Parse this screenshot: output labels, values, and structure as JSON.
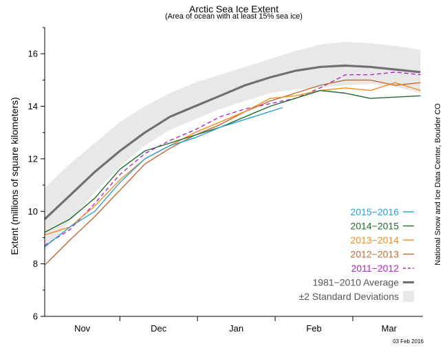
{
  "chart_data": {
    "type": "line",
    "title": "Arctic Sea Ice Extent",
    "subtitle": "(Area of ocean with at least 15% sea ice)",
    "ylabel": "Extent (millions of square kilometers)",
    "credit": "National Snow and Ice Data Center, Boulder CO",
    "date_stamp": "03 Feb 2016",
    "ylim": [
      6,
      17
    ],
    "xlim": [
      0,
      151
    ],
    "y_ticks": [
      6,
      8,
      10,
      12,
      14,
      16
    ],
    "month_boundaries": [
      30,
      61,
      92,
      123
    ],
    "x_labels": [
      {
        "label": "Nov",
        "day": 15
      },
      {
        "label": "Dec",
        "day": 45.5
      },
      {
        "label": "Jan",
        "day": 76.5
      },
      {
        "label": "Feb",
        "day": 107.5
      },
      {
        "label": "Mar",
        "day": 137.5
      }
    ],
    "band": {
      "name": "±2 Standard Deviations",
      "color": "#e8e8e8",
      "x": [
        0,
        10,
        20,
        30,
        40,
        50,
        60,
        70,
        80,
        90,
        100,
        110,
        120,
        130,
        140,
        150
      ],
      "upper": [
        10.9,
        11.8,
        12.6,
        13.4,
        14.0,
        14.5,
        14.9,
        15.2,
        15.5,
        15.8,
        16.1,
        16.35,
        16.45,
        16.4,
        16.3,
        16.15
      ],
      "lower": [
        8.5,
        9.6,
        10.7,
        11.7,
        12.5,
        13.1,
        13.5,
        13.9,
        14.2,
        14.5,
        14.65,
        14.7,
        14.8,
        14.85,
        14.75,
        14.5
      ]
    },
    "series": [
      {
        "name": "1981–2010 Average",
        "color": "#707070",
        "dash": "solid",
        "width": 3.2,
        "x": [
          0,
          10,
          20,
          30,
          40,
          50,
          60,
          65,
          70,
          80,
          90,
          100,
          110,
          120,
          130,
          140,
          150
        ],
        "y": [
          9.7,
          10.6,
          11.5,
          12.3,
          13.0,
          13.6,
          14.0,
          14.2,
          14.4,
          14.8,
          15.1,
          15.35,
          15.5,
          15.55,
          15.5,
          15.4,
          15.3
        ]
      },
      {
        "name": "2011–2012",
        "color": "#b026c6",
        "dash": "6,4",
        "width": 1.4,
        "x": [
          0,
          10,
          20,
          30,
          40,
          50,
          60,
          70,
          80,
          90,
          100,
          110,
          120,
          130,
          140,
          150
        ],
        "y": [
          8.7,
          9.3,
          10.3,
          11.4,
          12.2,
          12.7,
          13.1,
          13.6,
          13.9,
          14.1,
          14.3,
          14.7,
          15.2,
          15.2,
          15.3,
          15.2
        ]
      },
      {
        "name": "2012–2013",
        "color": "#c06a34",
        "dash": "solid",
        "width": 1.4,
        "x": [
          0,
          10,
          20,
          30,
          40,
          50,
          60,
          70,
          80,
          90,
          100,
          110,
          120,
          130,
          140,
          150
        ],
        "y": [
          7.95,
          8.9,
          9.8,
          10.8,
          11.8,
          12.4,
          12.9,
          13.3,
          13.8,
          14.2,
          14.5,
          14.8,
          15.0,
          15.0,
          14.8,
          14.9
        ]
      },
      {
        "name": "2013–2014",
        "color": "#f68b1f",
        "dash": "solid",
        "width": 1.4,
        "x": [
          0,
          10,
          20,
          30,
          40,
          50,
          60,
          70,
          80,
          90,
          100,
          110,
          120,
          130,
          140,
          150
        ],
        "y": [
          9.1,
          9.4,
          10.2,
          11.2,
          12.0,
          12.5,
          13.0,
          13.4,
          13.8,
          14.3,
          14.4,
          14.6,
          14.7,
          14.6,
          14.9,
          14.6
        ]
      },
      {
        "name": "2014–2015",
        "color": "#1e6b2c",
        "dash": "solid",
        "width": 1.4,
        "x": [
          0,
          10,
          20,
          30,
          40,
          50,
          60,
          70,
          80,
          90,
          100,
          110,
          120,
          130,
          140,
          150
        ],
        "y": [
          9.2,
          9.7,
          10.5,
          11.6,
          12.3,
          12.6,
          12.9,
          13.2,
          13.6,
          14.0,
          14.3,
          14.6,
          14.5,
          14.3,
          14.35,
          14.4
        ]
      },
      {
        "name": "2015–2016",
        "color": "#2a9fd8",
        "dash": "solid",
        "width": 1.4,
        "x": [
          0,
          10,
          20,
          30,
          40,
          50,
          60,
          70,
          80,
          90,
          95
        ],
        "y": [
          8.65,
          9.4,
          10.0,
          11.1,
          12.0,
          12.5,
          12.8,
          13.2,
          13.5,
          13.8,
          13.95
        ]
      }
    ],
    "legend": [
      {
        "label": "2015−2016",
        "color": "#2a9fd8",
        "dash": "solid",
        "kind": "line"
      },
      {
        "label": "2014−2015",
        "color": "#1e6b2c",
        "dash": "solid",
        "kind": "line"
      },
      {
        "label": "2013−2014",
        "color": "#f68b1f",
        "dash": "solid",
        "kind": "line"
      },
      {
        "label": "2012−2013",
        "color": "#c06a34",
        "dash": "solid",
        "kind": "line"
      },
      {
        "label": "2011−2012",
        "color": "#b026c6",
        "dash": "6,4",
        "kind": "line"
      },
      {
        "label": "1981−2010 Average",
        "color": "#707070",
        "dash": "solid",
        "kind": "thick"
      },
      {
        "label": "±2 Standard Deviations",
        "color": "#e8e8e8",
        "dash": "solid",
        "kind": "box"
      }
    ]
  }
}
